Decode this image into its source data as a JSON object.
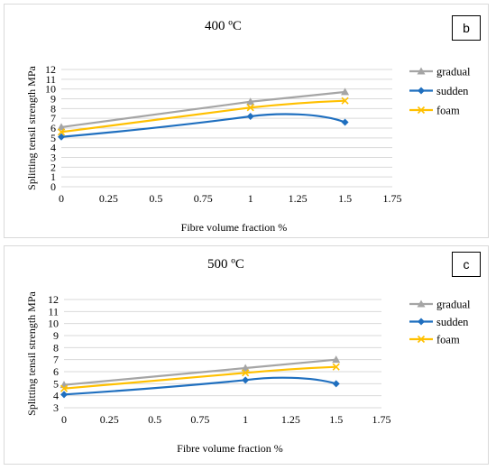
{
  "chart_data": [
    {
      "panel": "b",
      "type": "line",
      "title": "400 ºC",
      "badge": "b",
      "xlabel": "Fibre volume fraction %",
      "ylabel": "Splitting tensil strength MPa",
      "x_ticks": [
        "0",
        "0.25",
        "0.5",
        "0.75",
        "1",
        "1.25",
        "1.5",
        "1.75"
      ],
      "y_ticks": [
        "0",
        "1",
        "2",
        "3",
        "4",
        "5",
        "6",
        "7",
        "8",
        "9",
        "10",
        "11",
        "12"
      ],
      "xlim": [
        0,
        1.75
      ],
      "ylim": [
        0,
        12
      ],
      "grid": true,
      "legend_position": "right",
      "series": [
        {
          "name": "gradual",
          "color": "#a5a5a5",
          "marker": "triangle",
          "x": [
            0,
            1,
            1.5
          ],
          "values": [
            6.1,
            8.7,
            9.7
          ]
        },
        {
          "name": "sudden",
          "color": "#1f6fbf",
          "marker": "diamond",
          "x": [
            0,
            1,
            1.5
          ],
          "values": [
            5.1,
            7.2,
            6.6
          ]
        },
        {
          "name": "foam",
          "color": "#ffc000",
          "marker": "x",
          "x": [
            0,
            1,
            1.5
          ],
          "values": [
            5.6,
            8.1,
            8.8
          ]
        }
      ]
    },
    {
      "panel": "c",
      "type": "line",
      "title": "500 ºC",
      "badge": "c",
      "xlabel": "Fibre volume fraction %",
      "ylabel": "Splitting tensil strength MPa",
      "x_ticks": [
        "0",
        "0.25",
        "0.5",
        "0.75",
        "1",
        "1.25",
        "1.5",
        "1.75"
      ],
      "y_ticks": [
        "3",
        "4",
        "5",
        "6",
        "7",
        "8",
        "9",
        "10",
        "11",
        "12"
      ],
      "xlim": [
        0,
        1.75
      ],
      "ylim": [
        3,
        12
      ],
      "grid": true,
      "legend_position": "right",
      "series": [
        {
          "name": "gradual",
          "color": "#a5a5a5",
          "marker": "triangle",
          "x": [
            0,
            1,
            1.5
          ],
          "values": [
            4.9,
            6.3,
            7.0
          ]
        },
        {
          "name": "sudden",
          "color": "#1f6fbf",
          "marker": "diamond",
          "x": [
            0,
            1,
            1.5
          ],
          "values": [
            4.1,
            5.3,
            5.0
          ]
        },
        {
          "name": "foam",
          "color": "#ffc000",
          "marker": "x",
          "x": [
            0,
            1,
            1.5
          ],
          "values": [
            4.6,
            5.9,
            6.4
          ]
        }
      ]
    }
  ]
}
